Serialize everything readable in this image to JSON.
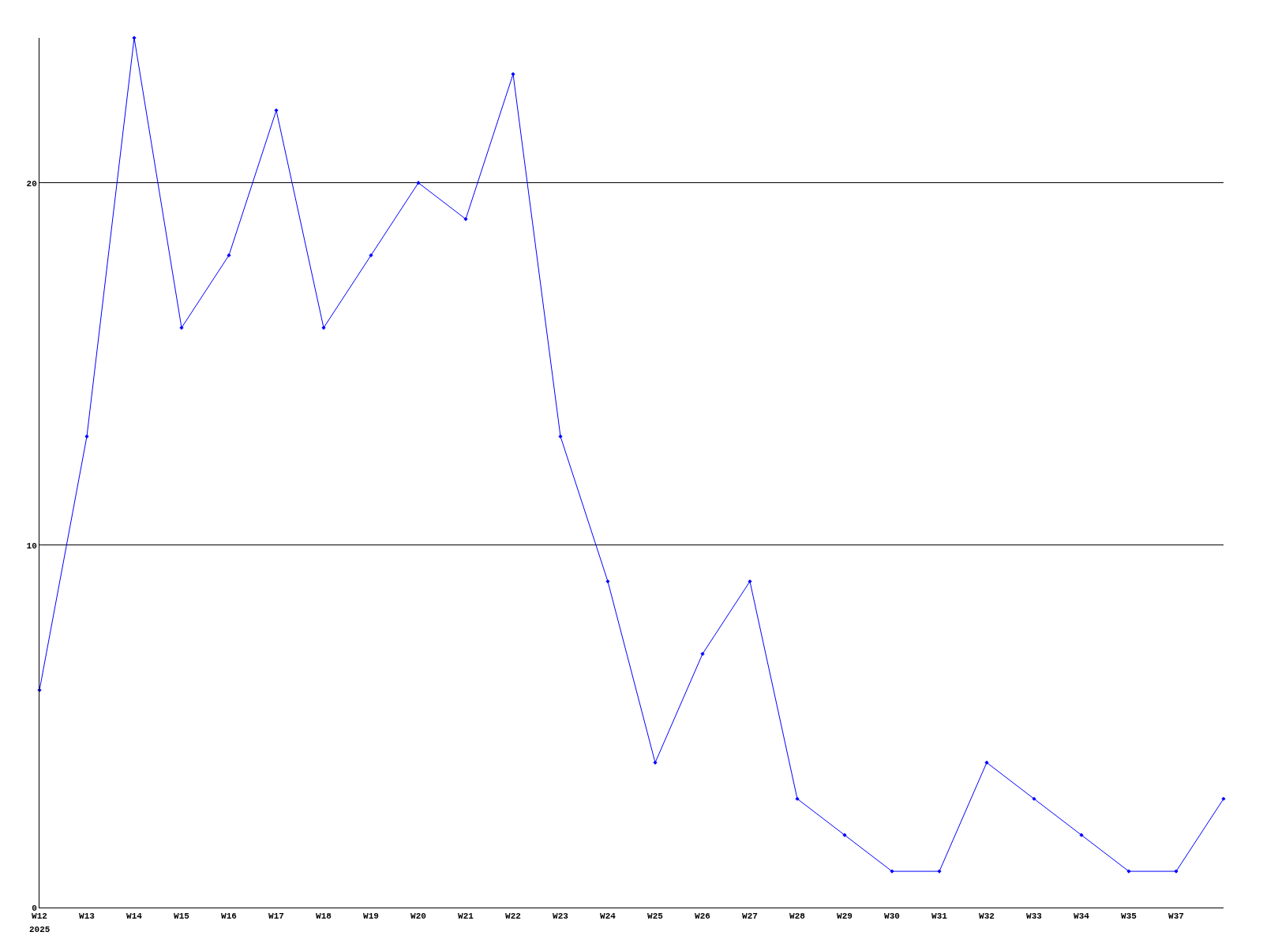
{
  "chart_data": {
    "type": "line",
    "categories": [
      "W12",
      "W13",
      "W14",
      "W15",
      "W16",
      "W17",
      "W18",
      "W19",
      "W20",
      "W21",
      "W22",
      "W23",
      "W24",
      "W25",
      "W26",
      "W27",
      "W28",
      "W29",
      "W30",
      "W31",
      "W32",
      "W33",
      "W34",
      "W35",
      "W37",
      null
    ],
    "series": [
      {
        "color": "#0000ff",
        "values": [
          6,
          13,
          24,
          16,
          18,
          22,
          16,
          18,
          20,
          19,
          23,
          13,
          9,
          4,
          7,
          9,
          3,
          2,
          1,
          1,
          4,
          3,
          2,
          1,
          1,
          3
        ]
      }
    ],
    "ylim": [
      0,
      24
    ],
    "yticks": [
      0,
      10,
      20
    ],
    "grid": "y",
    "marker": "diamond",
    "line_style": "solid",
    "legend": false,
    "annotations": [
      "2025"
    ]
  }
}
